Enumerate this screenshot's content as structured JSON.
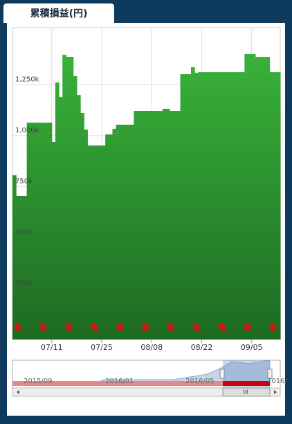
{
  "tab": "累積損益(円)",
  "chart_data": {
    "type": "step-area",
    "categories": [
      null,
      null,
      null,
      null,
      null,
      null,
      null,
      null,
      null,
      null,
      null,
      "07/11",
      null,
      null,
      null,
      null,
      null,
      null,
      null,
      null,
      null,
      null,
      null,
      null,
      null,
      "07/25",
      null,
      null,
      null,
      null,
      null,
      null,
      null,
      null,
      null,
      null,
      null,
      null,
      null,
      "08/08",
      null,
      null,
      null,
      null,
      null,
      null,
      null,
      null,
      null,
      null,
      null,
      null,
      null,
      "08/22",
      null,
      null,
      null,
      null,
      null,
      null,
      null,
      null,
      null,
      null,
      null,
      null,
      null,
      "09/05",
      null,
      null,
      null,
      null,
      null,
      null,
      null
    ],
    "values": [
      806,
      704,
      704,
      704,
      1064,
      1064,
      1064,
      1064,
      1064,
      1064,
      1064,
      969,
      1261,
      1190,
      1397,
      1387,
      1387,
      1292,
      1200,
      1112,
      1030,
      952,
      952,
      952,
      952,
      952,
      1006,
      1006,
      1034,
      1054,
      1054,
      1054,
      1054,
      1054,
      1122,
      1122,
      1122,
      1122,
      1122,
      1122,
      1122,
      1122,
      1132,
      1132,
      1122,
      1122,
      1122,
      1302,
      1302,
      1302,
      1336,
      1309,
      1312,
      1312,
      1312,
      1312,
      1312,
      1312,
      1312,
      1312,
      1312,
      1312,
      1312,
      1312,
      1312,
      1401,
      1401,
      1401,
      1387,
      1387,
      1387,
      1387,
      1312,
      1312,
      1312
    ],
    "colors": [
      "#3cb83c",
      "#1d6a22"
    ],
    "ylim": [
      0,
      1530
    ],
    "yticks": [
      {
        "value": 250,
        "label": "250k"
      },
      {
        "value": 500,
        "label": "500k"
      },
      {
        "value": 750,
        "label": "750k"
      },
      {
        "value": 1000,
        "label": "1,000k"
      },
      {
        "value": 1250,
        "label": "1,250k"
      }
    ],
    "grid": true
  },
  "navigator": {
    "labels": [
      "2015/09",
      "2016/01",
      "2016/05",
      "2016/"
    ]
  }
}
